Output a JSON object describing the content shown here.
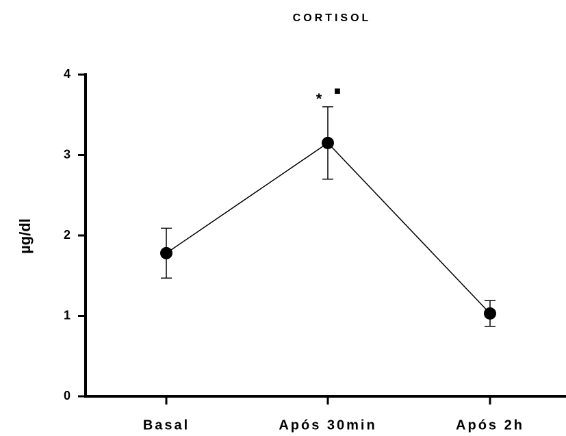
{
  "chart_data": {
    "type": "line",
    "title": "CORTISOL",
    "y_label": "µg/dl",
    "categories": [
      "Basal",
      "Após 30min",
      "Após 2h"
    ],
    "series": [
      {
        "name": "Cortisol",
        "color": "#000000",
        "values": [
          1.78,
          3.15,
          1.03
        ],
        "errors": [
          0.31,
          0.45,
          0.16
        ]
      }
    ],
    "annotations": [
      "*",
      "■"
    ],
    "ylim": [
      0,
      4
    ],
    "yticks": [
      0,
      1,
      2,
      3,
      4
    ],
    "grid": false
  }
}
